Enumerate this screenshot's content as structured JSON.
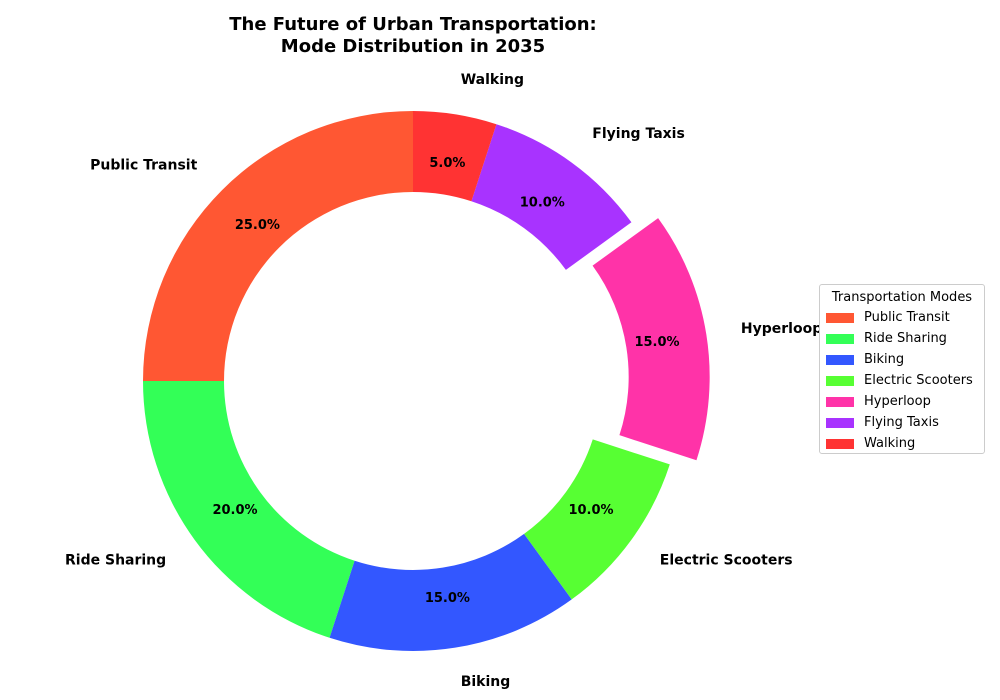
{
  "chart_data": {
    "type": "pie",
    "title": "The Future of Urban Transportation:",
    "subtitle": "Mode Distribution in 2035",
    "categories": [
      "Public Transit",
      "Ride Sharing",
      "Biking",
      "Electric Scooters",
      "Hyperloop",
      "Flying Taxis",
      "Walking"
    ],
    "values": [
      25,
      20,
      15,
      10,
      15,
      10,
      5
    ],
    "percent_labels": [
      "25.0%",
      "20.0%",
      "15.0%",
      "10.0%",
      "15.0%",
      "10.0%",
      "5.0%"
    ],
    "colors": [
      "#FF5733",
      "#33FF57",
      "#3357FF",
      "#57FF33",
      "#FF33A8",
      "#A833FF",
      "#FF3333"
    ],
    "exploded": [
      false,
      false,
      false,
      false,
      true,
      false,
      false
    ],
    "donut": true,
    "start_angle_deg": 90,
    "direction": "counterclockwise",
    "legend": {
      "title": "Transportation Modes",
      "placement": "center-right"
    }
  }
}
